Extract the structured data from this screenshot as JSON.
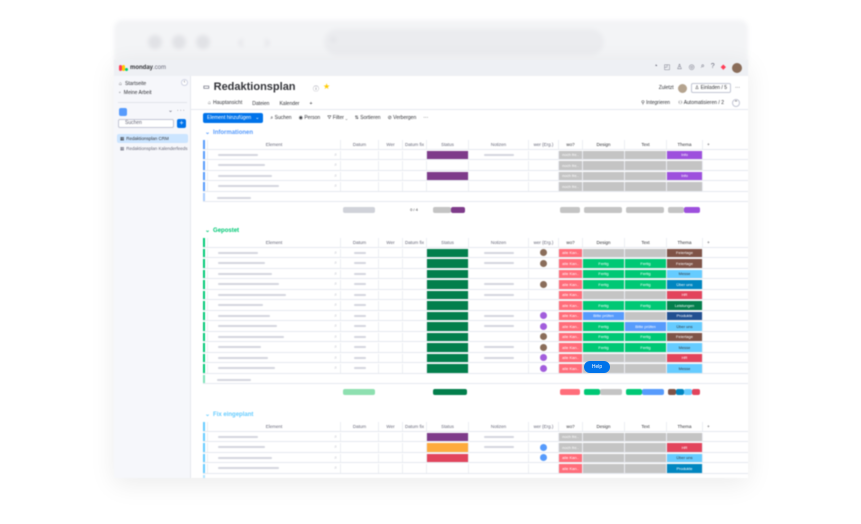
{
  "app": {
    "logo_text": "monday",
    "logo_suffix": ".com",
    "logo_colors": [
      "#ff3d57",
      "#ffcb00",
      "#00ca72"
    ]
  },
  "sidebar": {
    "home_label": "Startseite",
    "mywork_label": "Meine Arbeit",
    "search_placeholder": "Suchen",
    "add_label": "+",
    "boards": [
      {
        "label": "Redaktionsplan CRM",
        "active": true
      },
      {
        "label": "Redaktionsplan Kalenderfeeds",
        "active": false
      }
    ]
  },
  "board": {
    "title": "Redaktionsplan",
    "activity_label": "Zuletzt",
    "invite_label": "Einladen / 5",
    "views": [
      "Hauptansicht",
      "Dateien",
      "Kalender"
    ],
    "integrate_label": "Integrieren",
    "automate_label": "Automatisieren / 2",
    "toolbar": {
      "new_item_label": "Element hinzufügen",
      "search_label": "Suchen",
      "person_label": "Person",
      "filter_label": "Filter",
      "sort_label": "Sortieren",
      "hide_label": "Verbergen"
    }
  },
  "columns": {
    "name": "Element",
    "col2": "Datum",
    "col3": "Wer",
    "col4": "Datum fix",
    "status": "Status",
    "notes": "Notizen",
    "person": "wer (Erg.)",
    "wo": "wo?",
    "design": "Design",
    "text": "Text",
    "theme": "Thema",
    "add": "+"
  },
  "groups": [
    {
      "title": "Informationen",
      "color": "#579bfc",
      "summary_label": "0 / 4",
      "rows": [
        {
          "wo": "noch fre..",
          "wo_color": "#c4c4c4",
          "design": "",
          "design_color": "#c4c4c4",
          "text": "",
          "text_color": "#c4c4c4",
          "theme": "Info",
          "theme_color": "#9d50dd",
          "status_color": "#7e3b8a",
          "person_color": ""
        },
        {
          "wo": "noch fre..",
          "wo_color": "#c4c4c4",
          "design": "",
          "design_color": "#c4c4c4",
          "text": "",
          "text_color": "#c4c4c4",
          "theme": "",
          "theme_color": "#c4c4c4",
          "status_color": "",
          "person_color": ""
        },
        {
          "wo": "noch fre..",
          "wo_color": "#c4c4c4",
          "design": "",
          "design_color": "#c4c4c4",
          "text": "",
          "text_color": "#c4c4c4",
          "theme": "Info",
          "theme_color": "#9d50dd",
          "status_color": "#7e3b8a",
          "person_color": ""
        },
        {
          "wo": "noch fre..",
          "wo_color": "#c4c4c4",
          "design": "",
          "design_color": "#c4c4c4",
          "text": "",
          "text_color": "#c4c4c4",
          "theme": "",
          "theme_color": "#c4c4c4",
          "status_color": "",
          "person_color": ""
        }
      ]
    },
    {
      "title": "Gepostet",
      "color": "#00c875",
      "summary_label": "",
      "rows": [
        {
          "wo": "alle Kan..",
          "wo_color": "#ff6d7a",
          "design": "",
          "design_color": "#c4c4c4",
          "text": "",
          "text_color": "#c4c4c4",
          "theme": "Feiertage",
          "theme_color": "#7f5347",
          "status_color": "#037f4c",
          "person_color": "#8a6d5a"
        },
        {
          "wo": "alle Kan..",
          "wo_color": "#ff6d7a",
          "design": "Fertig",
          "design_color": "#00c875",
          "text": "Fertig",
          "text_color": "#00c875",
          "theme": "Feiertage",
          "theme_color": "#7f5347",
          "status_color": "#037f4c",
          "person_color": "#8a6d5a"
        },
        {
          "wo": "alle Kan..",
          "wo_color": "#ff6d7a",
          "design": "Fertig",
          "design_color": "#00c875",
          "text": "Fertig",
          "text_color": "#00c875",
          "theme": "Messe",
          "theme_color": "#66ccff",
          "status_color": "#037f4c",
          "person_color": ""
        },
        {
          "wo": "alle Kan..",
          "wo_color": "#ff6d7a",
          "design": "Fertig",
          "design_color": "#00c875",
          "text": "Fertig",
          "text_color": "#00c875",
          "theme": "Über uns",
          "theme_color": "#0086c0",
          "status_color": "#037f4c",
          "person_color": "#8a6d5a"
        },
        {
          "wo": "alle Kan..",
          "wo_color": "#ff6d7a",
          "design": "",
          "design_color": "#c4c4c4",
          "text": "",
          "text_color": "#c4c4c4",
          "theme": "HR",
          "theme_color": "#e2445c",
          "status_color": "#037f4c",
          "person_color": ""
        },
        {
          "wo": "alle Kan..",
          "wo_color": "#ff6d7a",
          "design": "Fertig",
          "design_color": "#00c875",
          "text": "Fertig",
          "text_color": "#00c875",
          "theme": "Leistungen",
          "theme_color": "#037f4c",
          "status_color": "#037f4c",
          "person_color": ""
        },
        {
          "wo": "alle Kan..",
          "wo_color": "#ff6d7a",
          "design": "Bitte prüfen",
          "design_color": "#579bfc",
          "text": "",
          "text_color": "#c4c4c4",
          "theme": "Produkte",
          "theme_color": "#225091",
          "status_color": "#037f4c",
          "person_color": "#a25ddc"
        },
        {
          "wo": "alle Kan..",
          "wo_color": "#ff6d7a",
          "design": "Fertig",
          "design_color": "#00c875",
          "text": "Bitte prüfen",
          "text_color": "#579bfc",
          "theme": "Über uns",
          "theme_color": "#66ccff",
          "status_color": "#037f4c",
          "person_color": "#a25ddc"
        },
        {
          "wo": "alle Kan..",
          "wo_color": "#ff6d7a",
          "design": "Fertig",
          "design_color": "#00c875",
          "text": "Fertig",
          "text_color": "#00c875",
          "theme": "Feiertage",
          "theme_color": "#7f5347",
          "status_color": "#037f4c",
          "person_color": "#8a6d5a"
        },
        {
          "wo": "alle Kan..",
          "wo_color": "#ff6d7a",
          "design": "Fertig",
          "design_color": "#00c875",
          "text": "Fertig",
          "text_color": "#00c875",
          "theme": "Messe",
          "theme_color": "#66ccff",
          "status_color": "#037f4c",
          "person_color": "#8a6d5a"
        },
        {
          "wo": "alle Kan..",
          "wo_color": "#ff6d7a",
          "design": "",
          "design_color": "#c4c4c4",
          "text": "",
          "text_color": "#c4c4c4",
          "theme": "HR",
          "theme_color": "#e2445c",
          "status_color": "#037f4c",
          "person_color": "#a25ddc"
        },
        {
          "wo": "alle Kan..",
          "wo_color": "#ff6d7a",
          "design": "",
          "design_color": "#c4c4c4",
          "text": "",
          "text_color": "#c4c4c4",
          "theme": "Messe",
          "theme_color": "#66ccff",
          "status_color": "#037f4c",
          "person_color": "#a25ddc"
        }
      ]
    },
    {
      "title": "Fix eingeplant",
      "color": "#66ccff",
      "summary_label": "",
      "rows": [
        {
          "wo": "noch fre..",
          "wo_color": "#c4c4c4",
          "design": "",
          "design_color": "#c4c4c4",
          "text": "",
          "text_color": "#c4c4c4",
          "theme": "",
          "theme_color": "#c4c4c4",
          "status_color": "#7e3b8a",
          "person_color": ""
        },
        {
          "wo": "noch fre..",
          "wo_color": "#c4c4c4",
          "design": "",
          "design_color": "#c4c4c4",
          "text": "",
          "text_color": "#c4c4c4",
          "theme": "HR",
          "theme_color": "#e2445c",
          "status_color": "#fdab3d",
          "person_color": "#579bfc"
        },
        {
          "wo": "alle Kan..",
          "wo_color": "#ff6d7a",
          "design": "",
          "design_color": "#c4c4c4",
          "text": "",
          "text_color": "#c4c4c4",
          "theme": "Über uns",
          "theme_color": "#66ccff",
          "status_color": "#e2445c",
          "person_color": "#579bfc"
        },
        {
          "wo": "alle Kan..",
          "wo_color": "#ff6d7a",
          "design": "",
          "design_color": "#c4c4c4",
          "text": "",
          "text_color": "#c4c4c4",
          "theme": "Produkte",
          "theme_color": "#0086c0",
          "status_color": "",
          "person_color": ""
        }
      ]
    }
  ],
  "help_label": "Help"
}
